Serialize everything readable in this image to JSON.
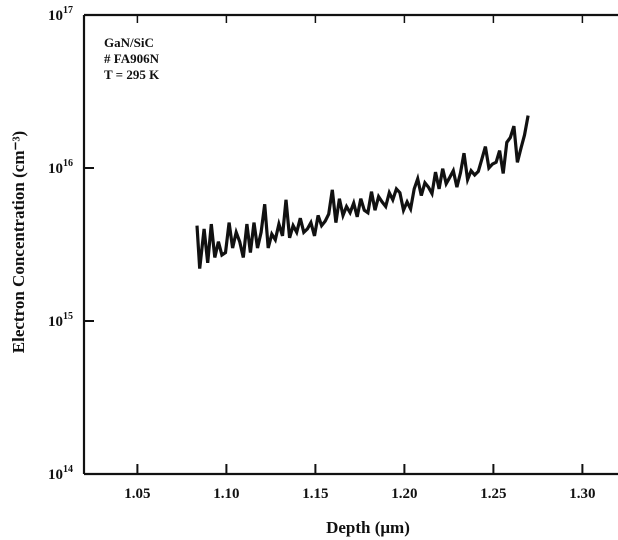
{
  "chart_data": {
    "type": "line",
    "xlabel": "Depth (μm)",
    "ylabel": "Electron Concentration (cm⁻³)",
    "xlim": [
      1.02,
      1.32
    ],
    "ylim": [
      100000000000000.0,
      1e+17
    ],
    "y_scale": "log",
    "grid": false,
    "legend": "none",
    "x_ticks": [
      1.05,
      1.1,
      1.15,
      1.2,
      1.25,
      1.3
    ],
    "x_tick_labels": [
      "1.05",
      "1.10",
      "1.15",
      "1.20",
      "1.25",
      "1.30"
    ],
    "y_ticks": [
      100000000000000.0,
      1000000000000000.0,
      1e+16,
      1e+17
    ],
    "y_tick_labels": [
      {
        "base": "10",
        "exp": "14"
      },
      {
        "base": "10",
        "exp": "15"
      },
      {
        "base": "10",
        "exp": "16"
      },
      {
        "base": "10",
        "exp": "17"
      }
    ],
    "annotations": [
      "GaN/SiC",
      "# FA906N",
      "T = 295 K"
    ],
    "line_color": "#111111",
    "series": [
      {
        "x": [
          1.0835,
          1.085,
          1.0875,
          1.0895,
          1.0915,
          1.0935,
          1.0955,
          1.0975,
          1.0995,
          1.1015,
          1.1035,
          1.1055,
          1.1075,
          1.1095,
          1.1115,
          1.1135,
          1.1155,
          1.1175,
          1.1195,
          1.1215,
          1.1235,
          1.1255,
          1.1275,
          1.1295,
          1.1315,
          1.1335,
          1.1355,
          1.1375,
          1.1395,
          1.1415,
          1.1435,
          1.1455,
          1.1475,
          1.1495,
          1.1515,
          1.1535,
          1.1555,
          1.1575,
          1.1595,
          1.1615,
          1.1635,
          1.1655,
          1.1675,
          1.1695,
          1.1715,
          1.1735,
          1.1755,
          1.1775,
          1.1795,
          1.1815,
          1.1835,
          1.1855,
          1.1875,
          1.1895,
          1.1915,
          1.1935,
          1.1955,
          1.1975,
          1.1995,
          1.2015,
          1.2035,
          1.2055,
          1.2075,
          1.2095,
          1.2115,
          1.2135,
          1.2155,
          1.2175,
          1.2195,
          1.2215,
          1.2235,
          1.2255,
          1.2275,
          1.2295,
          1.2315,
          1.2335,
          1.2355,
          1.2375,
          1.2395,
          1.2415,
          1.2435,
          1.2455,
          1.2475,
          1.2495,
          1.2515,
          1.2535,
          1.2555,
          1.2575,
          1.2595,
          1.2615,
          1.2635,
          1.2655,
          1.2675,
          1.2695
        ],
        "y": [
          4200000000000000.0,
          2200000000000000.0,
          4000000000000000.0,
          2400000000000000.0,
          4300000000000000.0,
          2600000000000000.0,
          3300000000000000.0,
          2700000000000000.0,
          2800000000000000.0,
          4400000000000000.0,
          3000000000000000.0,
          3800000000000000.0,
          3300000000000000.0,
          2600000000000000.0,
          4300000000000000.0,
          2800000000000000.0,
          4400000000000000.0,
          3000000000000000.0,
          3800000000000000.0,
          5800000000000000.0,
          3000000000000000.0,
          3700000000000000.0,
          3400000000000000.0,
          4300000000000000.0,
          3600000000000000.0,
          6200000000000000.0,
          3500000000000000.0,
          4200000000000000.0,
          3800000000000000.0,
          4700000000000000.0,
          3800000000000000.0,
          4000000000000000.0,
          4400000000000000.0,
          3600000000000000.0,
          4900000000000000.0,
          4200000000000000.0,
          4500000000000000.0,
          5000000000000000.0,
          7200000000000000.0,
          4400000000000000.0,
          6300000000000000.0,
          4900000000000000.0,
          5600000000000000.0,
          5100000000000000.0,
          5900000000000000.0,
          4800000000000000.0,
          6300000000000000.0,
          5300000000000000.0,
          5100000000000000.0,
          7000000000000000.0,
          5300000000000000.0,
          6500000000000000.0,
          6000000000000000.0,
          5600000000000000.0,
          6900000000000000.0,
          6200000000000000.0,
          7300000000000000.0,
          6900000000000000.0,
          5300000000000000.0,
          6000000000000000.0,
          5400000000000000.0,
          7300000000000000.0,
          8500000000000000.0,
          6600000000000000.0,
          8000000000000000.0,
          7500000000000000.0,
          6800000000000000.0,
          9400000000000000.0,
          7300000000000000.0,
          9900000000000000.0,
          7900000000000000.0,
          8700000000000000.0,
          9600000000000000.0,
          7500000000000000.0,
          9300000000000000.0,
          1.25e+16,
          8400000000000000.0,
          9600000000000000.0,
          9000000000000000.0,
          9500000000000000.0,
          1.14e+16,
          1.38e+16,
          1e+16,
          1.06e+16,
          1.09e+16,
          1.3e+16,
          9200000000000000.0,
          1.47e+16,
          1.58e+16,
          1.88e+16,
          1.09e+16,
          1.35e+16,
          1.64e+16,
          2.2e+16
        ]
      }
    ]
  }
}
